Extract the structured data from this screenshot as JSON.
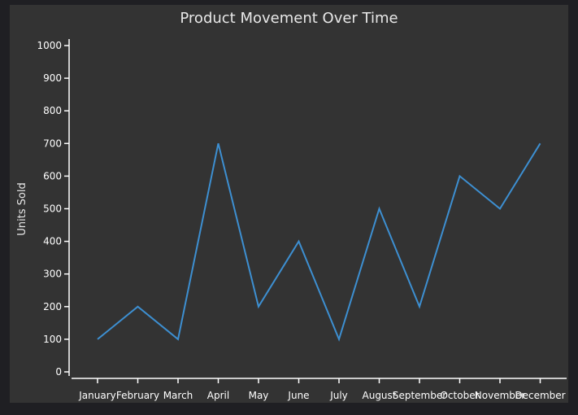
{
  "chart_data": {
    "type": "line",
    "title": "Product Movement Over Time",
    "xlabel": "",
    "ylabel": "Units Sold",
    "categories": [
      "January",
      "February",
      "March",
      "April",
      "May",
      "June",
      "July",
      "August",
      "September",
      "October",
      "November",
      "December"
    ],
    "series": [
      {
        "values": [
          100,
          200,
          100,
          700,
          200,
          400,
          100,
          500,
          200,
          600,
          500,
          700
        ]
      }
    ],
    "ylim": [
      0,
      1000
    ],
    "yticks": [
      0,
      100,
      200,
      300,
      400,
      500,
      600,
      700,
      800,
      900,
      1000
    ],
    "grid": false,
    "line_color": "#3d8fd1",
    "axis_color": "#ffffff",
    "background_color": "#333333",
    "page_color": "#1f1f23"
  }
}
